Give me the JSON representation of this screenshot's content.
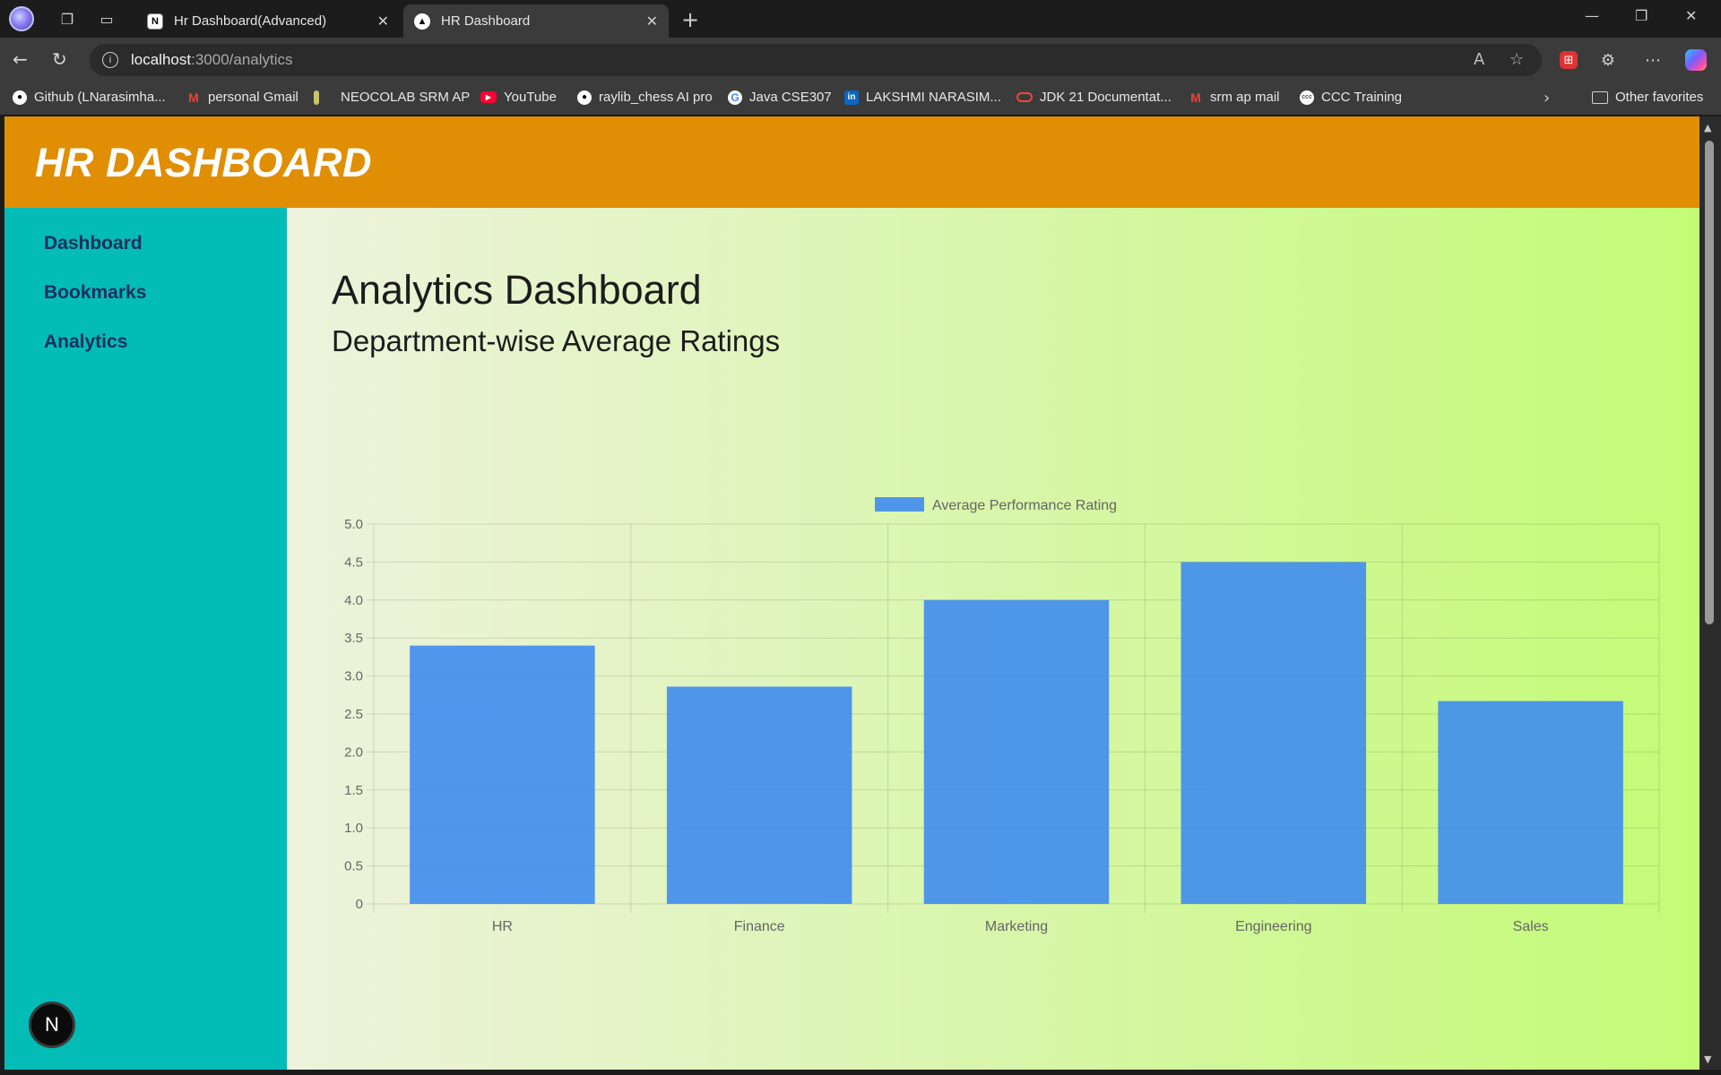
{
  "browser": {
    "tabs": [
      {
        "title": "Hr Dashboard(Advanced)",
        "favicon": "notion-icon",
        "active": false
      },
      {
        "title": "HR Dashboard",
        "favicon": "nextjs-icon",
        "active": true
      }
    ],
    "url_host": "localhost",
    "url_path": ":3000/analytics",
    "bookmarks": [
      {
        "label": "Github (LNarasimha...",
        "icon": "github-icon"
      },
      {
        "label": "personal Gmail",
        "icon": "gmail-icon"
      },
      {
        "label": "NEOCOLAB SRM AP",
        "icon": "neocolab-icon"
      },
      {
        "label": "YouTube",
        "icon": "youtube-icon"
      },
      {
        "label": "raylib_chess AI pro",
        "icon": "github-icon"
      },
      {
        "label": "Java CSE307",
        "icon": "google-icon"
      },
      {
        "label": "LAKSHMI NARASIM...",
        "icon": "linkedin-icon"
      },
      {
        "label": "JDK 21 Documentat...",
        "icon": "oracle-icon"
      },
      {
        "label": "srm ap mail",
        "icon": "gmail-icon"
      },
      {
        "label": "CCC Training",
        "icon": "ccc-icon"
      }
    ],
    "other_favorites": "Other favorites"
  },
  "app": {
    "header_title": "HR DASHBOARD",
    "nav": [
      {
        "label": "Dashboard"
      },
      {
        "label": "Bookmarks"
      },
      {
        "label": "Analytics"
      }
    ],
    "page_title": "Analytics Dashboard",
    "section_title": "Department-wise Average Ratings",
    "next_badge": "N"
  },
  "colors": {
    "header": "#e08e04",
    "sidebar": "#03bcb6",
    "bar": "#3f8cf0"
  },
  "chart_data": {
    "type": "bar",
    "categories": [
      "HR",
      "Finance",
      "Marketing",
      "Engineering",
      "Sales"
    ],
    "series": [
      {
        "name": "Average Performance Rating",
        "values": [
          3.4,
          2.86,
          4.0,
          4.5,
          2.67
        ]
      }
    ],
    "ylim": [
      0,
      5
    ],
    "yticks": [
      "0",
      "0.5",
      "1.0",
      "1.5",
      "2.0",
      "2.5",
      "3.0",
      "3.5",
      "4.0",
      "4.5",
      "5.0"
    ],
    "grid": true,
    "legend": "top-center"
  }
}
